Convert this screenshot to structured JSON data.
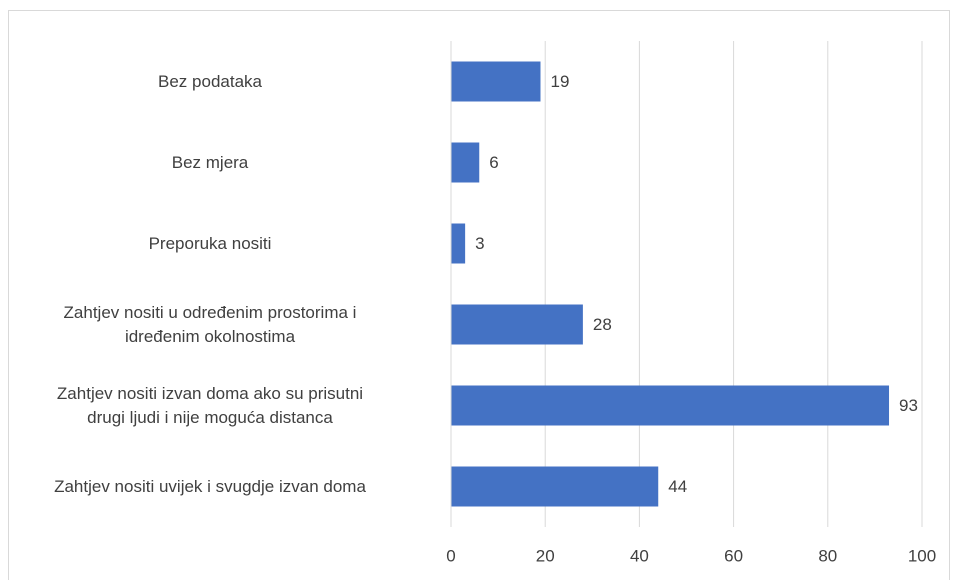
{
  "chart_data": {
    "type": "barh",
    "categories": [
      "Bez podataka",
      "Bez mjera",
      "Preporuka nositi",
      "Zahtjev nositi u određenim prostorima i\nidređenim okolnostima",
      "Zahtjev nositi izvan doma ako su prisutni\ndrugi ljudi i nije moguća distanca",
      "Zahtjev nositi uvijek i svugdje izvan doma"
    ],
    "values": [
      19,
      6,
      3,
      28,
      93,
      44
    ],
    "color": "#4472c4",
    "xlim": [
      0,
      100
    ],
    "xticks": [
      0,
      20,
      40,
      60,
      80,
      100
    ],
    "grid": true
  }
}
